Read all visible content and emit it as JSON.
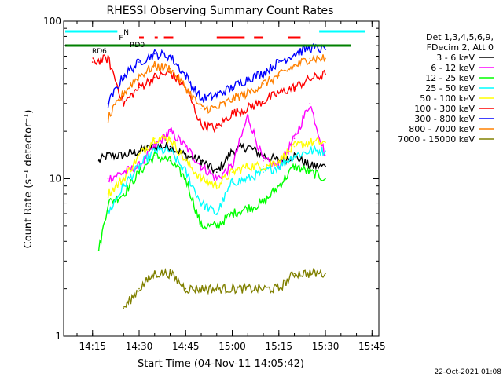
{
  "chart_data": {
    "type": "line",
    "title": "RHESSI Observing Summary Count Rates",
    "xlabel": "Start Time (04-Nov-11 14:05:42)",
    "ylabel": "Count Rate (s⁻¹ detector⁻¹)",
    "y_scale": "log",
    "ylim": [
      1,
      100
    ],
    "xlim": [
      "14:05:42",
      "15:47:12"
    ],
    "x_ticks": [
      "14:15",
      "14:30",
      "14:45",
      "15:00",
      "15:15",
      "15:30",
      "15:45"
    ],
    "y_ticks": [
      "1",
      "10",
      "100"
    ],
    "grid": false,
    "legend_position": "right",
    "legend_header": [
      "Det 1,3,4,5,6,9,",
      "FDecim 2, Att 0"
    ],
    "series": [
      {
        "name": "3 - 6 keV",
        "color": "#000000",
        "x": [
          "14:17",
          "14:20",
          "14:25",
          "14:30",
          "14:35",
          "14:40",
          "14:45",
          "14:50",
          "14:55",
          "15:00",
          "15:05",
          "15:10",
          "15:15",
          "15:20",
          "15:25",
          "15:30"
        ],
        "y": [
          13,
          14,
          14,
          15,
          16,
          16,
          14,
          13,
          11,
          15,
          16,
          14,
          13,
          14,
          12,
          12
        ]
      },
      {
        "name": "6 - 12 keV",
        "color": "#ff00ff",
        "x": [
          "14:20",
          "14:25",
          "14:30",
          "14:35",
          "14:40",
          "14:45",
          "14:50",
          "14:55",
          "15:00",
          "15:05",
          "15:10",
          "15:15",
          "15:20",
          "15:25",
          "15:30"
        ],
        "y": [
          10,
          11,
          12,
          16,
          20,
          16,
          12,
          10,
          12,
          25,
          13,
          12,
          18,
          30,
          14
        ]
      },
      {
        "name": "12 - 25 keV",
        "color": "#00ff00",
        "x": [
          "14:17",
          "14:20",
          "14:25",
          "14:30",
          "14:35",
          "14:40",
          "14:45",
          "14:50",
          "14:55",
          "15:00",
          "15:05",
          "15:10",
          "15:15",
          "15:20",
          "15:25",
          "15:30"
        ],
        "y": [
          3.5,
          7,
          8,
          11,
          14,
          13,
          10,
          5,
          5,
          6,
          6.5,
          7,
          9,
          12,
          11,
          10
        ]
      },
      {
        "name": "25 - 50 keV",
        "color": "#00ffff",
        "x": [
          "14:20",
          "14:25",
          "14:30",
          "14:35",
          "14:40",
          "14:45",
          "14:50",
          "14:55",
          "15:00",
          "15:05",
          "15:10",
          "15:15",
          "15:20",
          "15:25",
          "15:30"
        ],
        "y": [
          6,
          9,
          12,
          15,
          15,
          11,
          7,
          6,
          9.5,
          10,
          11,
          12,
          14,
          15,
          15
        ]
      },
      {
        "name": "50 - 100 keV",
        "color": "#ffff00",
        "x": [
          "14:20",
          "14:25",
          "14:30",
          "14:35",
          "14:40",
          "14:45",
          "14:50",
          "14:55",
          "15:00",
          "15:05",
          "15:10",
          "15:15",
          "15:20",
          "15:25",
          "15:30"
        ],
        "y": [
          8,
          10,
          14,
          18,
          18,
          13,
          10,
          9,
          11,
          12,
          12,
          13,
          16,
          17,
          17
        ]
      },
      {
        "name": "100 - 300 keV",
        "color": "#ff0000",
        "x": [
          "14:15",
          "14:20",
          "14:25",
          "14:30",
          "14:35",
          "14:40",
          "14:45",
          "14:50",
          "14:55",
          "15:00",
          "15:05",
          "15:10",
          "15:15",
          "15:20",
          "15:25",
          "15:30"
        ],
        "y": [
          55,
          58,
          30,
          38,
          44,
          47,
          38,
          22,
          21,
          26,
          28,
          31,
          35,
          38,
          43,
          46
        ]
      },
      {
        "name": "300 - 800 keV",
        "color": "#0000ff",
        "x": [
          "14:20",
          "14:25",
          "14:30",
          "14:35",
          "14:40",
          "14:45",
          "14:50",
          "14:55",
          "15:00",
          "15:05",
          "15:10",
          "15:15",
          "15:20",
          "15:25",
          "15:30"
        ],
        "y": [
          30,
          45,
          55,
          62,
          60,
          45,
          32,
          34,
          38,
          43,
          47,
          55,
          62,
          68,
          66
        ]
      },
      {
        "name": "800 - 7000 keV",
        "color": "#ff8000",
        "x": [
          "14:20",
          "14:25",
          "14:30",
          "14:35",
          "14:40",
          "14:45",
          "14:50",
          "14:55",
          "15:00",
          "15:05",
          "15:10",
          "15:15",
          "15:20",
          "15:25",
          "15:30"
        ],
        "y": [
          24,
          35,
          45,
          52,
          50,
          38,
          28,
          28,
          32,
          35,
          40,
          45,
          52,
          58,
          58
        ]
      },
      {
        "name": "7000 - 15000 keV",
        "color": "#808000",
        "x": [
          "14:25",
          "14:30",
          "14:35",
          "14:40",
          "14:45",
          "15:15",
          "15:20",
          "15:25",
          "15:30"
        ],
        "y": [
          1.5,
          2,
          2.5,
          2.5,
          2,
          2,
          2.5,
          2.5,
          2.5
        ]
      }
    ],
    "annotations": [
      "N",
      "F",
      "RD0",
      "RD6"
    ],
    "footer_date": "22-Oct-2021 01:08"
  }
}
